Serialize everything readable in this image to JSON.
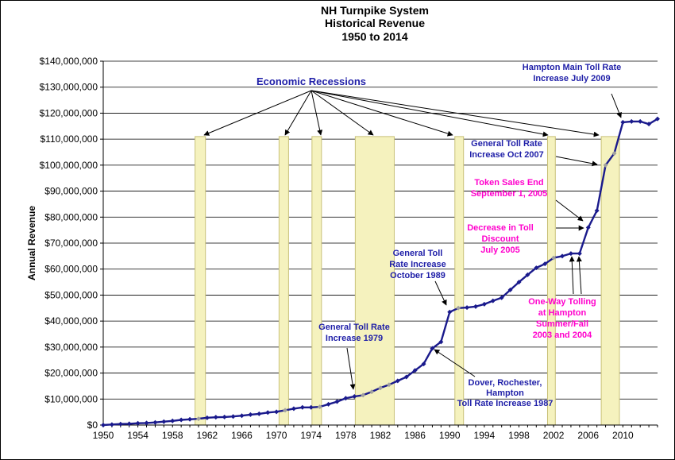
{
  "chart_data": {
    "type": "line",
    "title": [
      "NH Turnpike System",
      "Historical Revenue",
      "1950 to 2014"
    ],
    "ylabel": "Annual Revenue",
    "xlabel": "",
    "xlim": [
      1950,
      2014
    ],
    "ylim": [
      0,
      140000000
    ],
    "grid": "horizontal",
    "x_ticks": [
      "1950",
      "1954",
      "1958",
      "1962",
      "1966",
      "1970",
      "1974",
      "1978",
      "1982",
      "1986",
      "1990",
      "1994",
      "1998",
      "2002",
      "2006",
      "2010"
    ],
    "y_ticks": [
      "$0",
      "$10,000,000",
      "$20,000,000",
      "$30,000,000",
      "$40,000,000",
      "$50,000,000",
      "$60,000,000",
      "$70,000,000",
      "$80,000,000",
      "$90,000,000",
      "$100,000,000",
      "$110,000,000",
      "$120,000,000",
      "$130,000,000",
      "$140,000,000"
    ],
    "colors": {
      "line": "#1a1a8c",
      "recession_fill": "#f5f2be",
      "recession_stroke": "#c9c27a",
      "gray_marker": "#a0a0a0",
      "blue_text": "#1f1fa8",
      "magenta_text": "#ff00cc"
    },
    "series": [
      {
        "x": [
          1950,
          1951,
          1952,
          1953,
          1954,
          1955,
          1956,
          1957,
          1958,
          1959,
          1960,
          1961,
          1962,
          1963,
          1964,
          1965,
          1966,
          1967,
          1968,
          1969,
          1970,
          1971,
          1972,
          1973,
          1974,
          1975,
          1976,
          1977,
          1978,
          1979,
          1980,
          1981,
          1982,
          1983,
          1984,
          1985,
          1986,
          1987,
          1988,
          1989,
          1990,
          1991,
          1992,
          1993,
          1994,
          1995,
          1996,
          1997,
          1998,
          1999,
          2000,
          2001,
          2002,
          2003,
          2004,
          2005,
          2006,
          2007,
          2008,
          2009,
          2010,
          2011,
          2012,
          2013,
          2014
        ],
        "y": [
          0,
          200000,
          400000,
          500000,
          700000,
          800000,
          1000000,
          1300000,
          1600000,
          2000000,
          2200000,
          2400000,
          2800000,
          3000000,
          3100000,
          3300000,
          3600000,
          4000000,
          4300000,
          4800000,
          5100000,
          5700000,
          6300000,
          6800000,
          6800000,
          7000000,
          8000000,
          9000000,
          10300000,
          11000000,
          11500000,
          12800000,
          14300000,
          15500000,
          17000000,
          18500000,
          21000000,
          23500000,
          29500000,
          32000000,
          43500000,
          45000000,
          45200000,
          45600000,
          46500000,
          47800000,
          49000000,
          52000000,
          55000000,
          57800000,
          60500000,
          62000000,
          64300000,
          65000000,
          66000000,
          66000000,
          76000000,
          82500000,
          100000000,
          104500000,
          116500000,
          116800000,
          116800000,
          115800000,
          117800000
        ],
        "gray_points": [
          1961,
          1971,
          1975,
          1980,
          1981,
          1982,
          1983,
          1991,
          2002,
          2008,
          2009
        ]
      }
    ],
    "recessions": [
      [
        1960.6,
        1961.8
      ],
      [
        1970.3,
        1971.4
      ],
      [
        1974.1,
        1975.2
      ],
      [
        1979.1,
        1983.6
      ],
      [
        1990.6,
        1991.6
      ],
      [
        2001.3,
        2002.2
      ],
      [
        2007.5,
        2009.6
      ]
    ],
    "recession_top": 111000000,
    "recession_label": "Economic Recessions",
    "annotations": [
      {
        "lines": [
          "Hampton Main Toll Rate",
          "Increase July 2009"
        ],
        "color": "blue"
      },
      {
        "lines": [
          "General Toll Rate",
          "Increase Oct 2007"
        ],
        "color": "blue"
      },
      {
        "lines": [
          "Token Sales End",
          "September 1, 2005"
        ],
        "color": "magenta"
      },
      {
        "lines": [
          "Decrease in Toll",
          "Discount",
          "July 2005"
        ],
        "color": "magenta"
      },
      {
        "lines": [
          "One-Way Tolling",
          "at Hampton",
          "Summer/Fall",
          "2003 and 2004"
        ],
        "color": "magenta"
      },
      {
        "lines": [
          "General Toll",
          "Rate Increase",
          "October 1989"
        ],
        "color": "blue"
      },
      {
        "lines": [
          "General Toll Rate",
          "Increase 1979"
        ],
        "color": "blue"
      },
      {
        "lines": [
          "Dover, Rochester,",
          "Hampton",
          "Toll Rate Increase 1987"
        ],
        "color": "blue"
      }
    ]
  }
}
